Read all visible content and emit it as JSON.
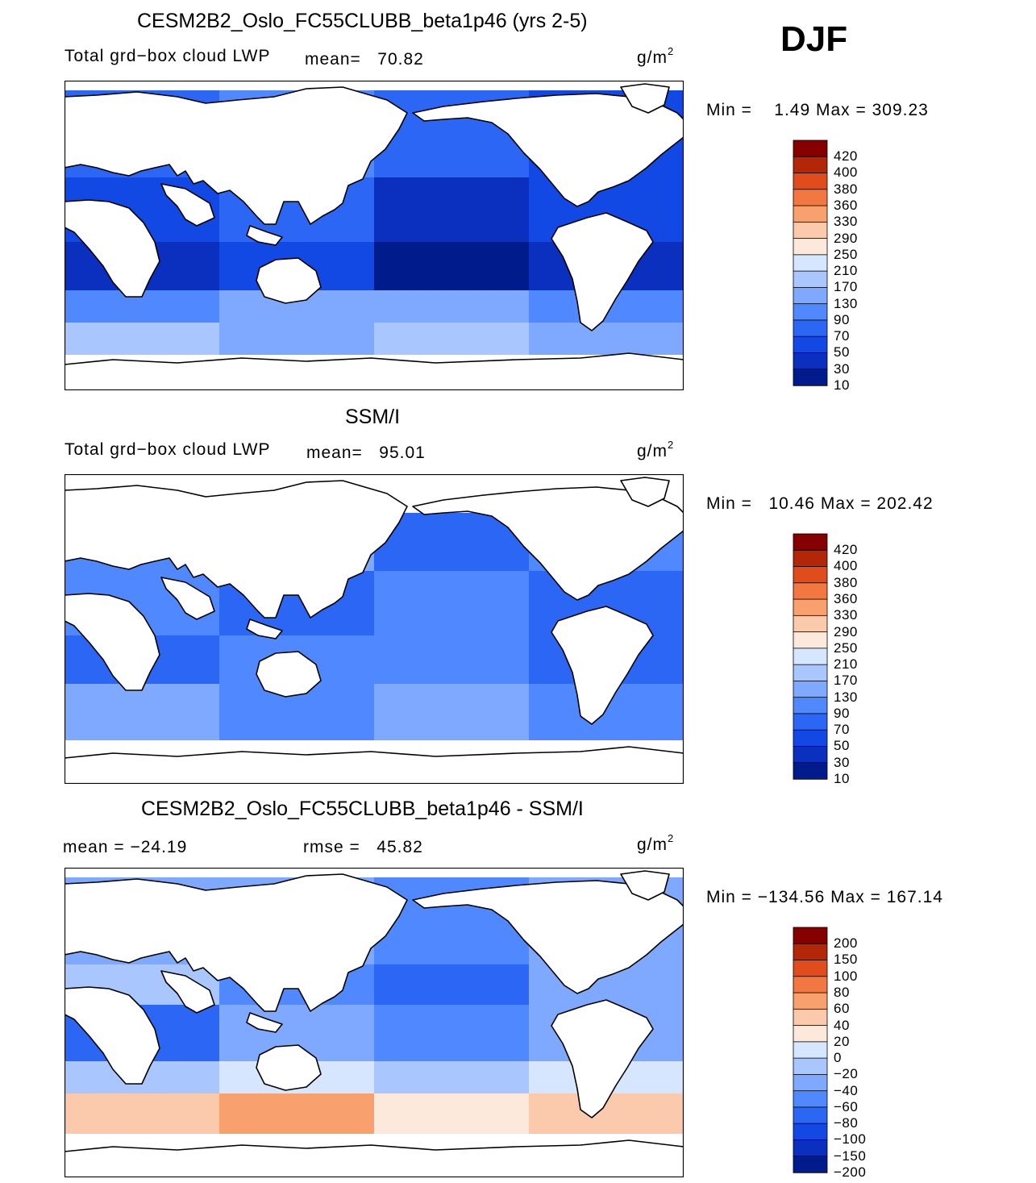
{
  "season": "DJF",
  "colors": {
    "scale": [
      "#001c8c",
      "#0b2fbf",
      "#1248e3",
      "#2b66f5",
      "#4f88ff",
      "#7fa9ff",
      "#a9c6ff",
      "#d6e6ff",
      "#fde9dc",
      "#fbc9ab",
      "#f9a06f",
      "#f27740",
      "#e04c1b",
      "#b32607",
      "#860000"
    ],
    "land": "#ffffff",
    "coast": "#000000"
  },
  "chart_data": [
    {
      "type": "heatmap",
      "id": "model",
      "title": "CESM2B2_Oslo_FC55CLUBB_beta1p46 (yrs 2-5)",
      "variable": "Total grd−box cloud LWP",
      "mean_text": "mean=   70.82",
      "mean": 70.82,
      "units": "g/m",
      "units_power": "2",
      "min_max_text": "Min =    1.49 Max = 309.23",
      "min": 1.49,
      "max": 309.23,
      "contour_levels": [
        10,
        30,
        50,
        70,
        90,
        130,
        170,
        210,
        250,
        290,
        330,
        360,
        380,
        400,
        420
      ],
      "level_labels": [
        "420",
        "400",
        "380",
        "360",
        "330",
        "290",
        "250",
        "210",
        "170",
        "130",
        "90",
        "70",
        "50",
        "30",
        "10"
      ]
    },
    {
      "type": "heatmap",
      "id": "obs",
      "title": "SSM/I",
      "variable": "Total grd−box cloud LWP",
      "mean_text": "mean=   95.01",
      "mean": 95.01,
      "units": "g/m",
      "units_power": "2",
      "min_max_text": "Min =   10.46 Max = 202.42",
      "min": 10.46,
      "max": 202.42,
      "contour_levels": [
        10,
        30,
        50,
        70,
        90,
        130,
        170,
        210,
        250,
        290,
        330,
        360,
        380,
        400,
        420
      ],
      "level_labels": [
        "420",
        "400",
        "380",
        "360",
        "330",
        "290",
        "250",
        "210",
        "170",
        "130",
        "90",
        "70",
        "50",
        "30",
        "10"
      ]
    },
    {
      "type": "heatmap",
      "id": "diff",
      "title": "CESM2B2_Oslo_FC55CLUBB_beta1p46 - SSM/I",
      "mean_text": "mean = −24.19",
      "mean": -24.19,
      "rmse_text": "rmse =   45.82",
      "rmse": 45.82,
      "units": "g/m",
      "units_power": "2",
      "min_max_text": "Min = −134.56 Max = 167.14",
      "min": -134.56,
      "max": 167.14,
      "contour_levels": [
        -200,
        -150,
        -100,
        -80,
        -60,
        -40,
        -20,
        0,
        20,
        40,
        60,
        80,
        100,
        150,
        200
      ],
      "level_labels": [
        "200",
        "150",
        "100",
        "80",
        "60",
        "40",
        "20",
        "0",
        "−20",
        "−40",
        "−60",
        "−80",
        "−100",
        "−150",
        "−200"
      ]
    }
  ]
}
